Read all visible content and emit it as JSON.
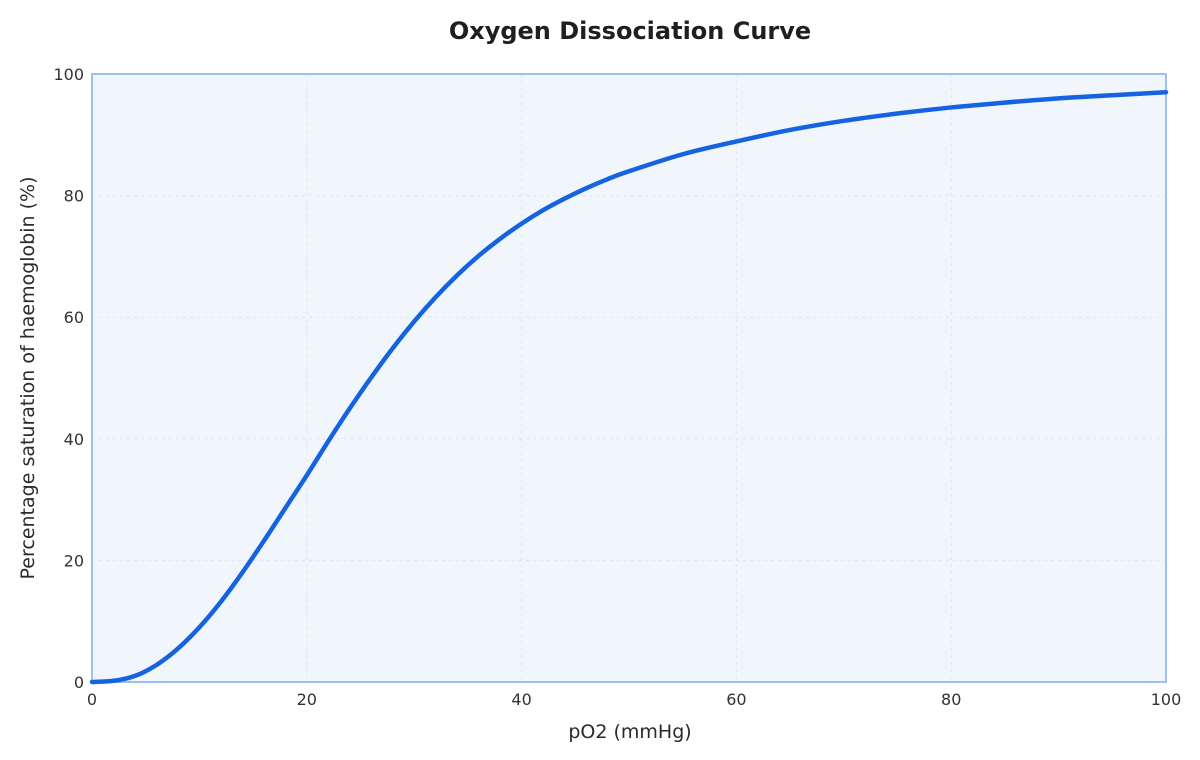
{
  "chart_data": {
    "type": "line",
    "title": "Oxygen Dissociation Curve",
    "xlabel": "pO2 (mmHg)",
    "ylabel": "Percentage saturation of haemoglobin (%)",
    "xlim": [
      0,
      100
    ],
    "ylim": [
      0,
      100
    ],
    "x_ticks": [
      0,
      20,
      40,
      60,
      80,
      100
    ],
    "y_ticks": [
      0,
      20,
      40,
      60,
      80,
      100
    ],
    "grid": true,
    "series": [
      {
        "x": [
          0,
          2,
          4,
          6,
          8,
          10,
          12,
          14,
          16,
          18,
          20,
          22,
          24,
          26,
          28,
          30,
          32,
          34,
          36,
          38,
          40,
          42,
          44,
          46,
          48,
          50,
          55,
          60,
          65,
          70,
          75,
          80,
          85,
          90,
          95,
          100
        ],
        "y": [
          0,
          0.2,
          1.0,
          2.8,
          5.5,
          9.0,
          13.2,
          18.0,
          23.2,
          28.6,
          34.0,
          39.6,
          45.0,
          50.1,
          54.9,
          59.3,
          63.3,
          66.9,
          70.1,
          72.9,
          75.4,
          77.6,
          79.5,
          81.2,
          82.7,
          84.0,
          86.8,
          88.9,
          90.8,
          92.3,
          93.5,
          94.5,
          95.3,
          96.0,
          96.5,
          97.0
        ]
      }
    ],
    "colors": {
      "line": "#1563e0",
      "plot_background": "#f1f6fd",
      "plot_border": "#9dbff0",
      "grid": "#dde6f2"
    }
  }
}
